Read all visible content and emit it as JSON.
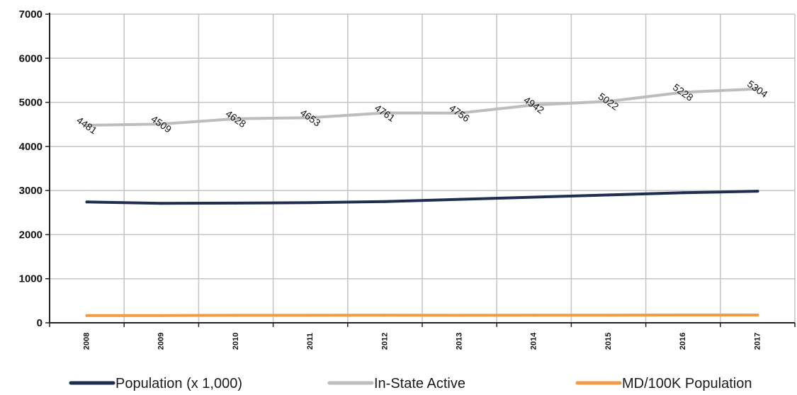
{
  "chart_data": {
    "type": "line",
    "categories": [
      "2008",
      "2009",
      "2010",
      "2011",
      "2012",
      "2013",
      "2014",
      "2015",
      "2016",
      "2017"
    ],
    "ylim": [
      0,
      7000
    ],
    "yticks": [
      "0",
      "1000",
      "2000",
      "3000",
      "4000",
      "5000",
      "6000",
      "7000"
    ],
    "grid": true,
    "legend_position": "bottom",
    "series": [
      {
        "name": "Population (x 1,000)",
        "color": "#1f2d4e",
        "values": [
          2740,
          2710,
          2715,
          2725,
          2750,
          2800,
          2850,
          2900,
          2950,
          2985
        ],
        "show_labels": false
      },
      {
        "name": "In-State Active",
        "color": "#bdbdbd",
        "values": [
          4481,
          4509,
          4628,
          4653,
          4761,
          4756,
          4942,
          5022,
          5228,
          5304
        ],
        "labels": [
          "4481",
          "4509",
          "4628",
          "4653",
          "4761",
          "4756",
          "4942",
          "5022",
          "5228",
          "5304"
        ],
        "show_labels": true
      },
      {
        "name": "MD/100K Population",
        "color": "#f29b45",
        "values": [
          163,
          166,
          170,
          170,
          173,
          170,
          173,
          173,
          177,
          177
        ],
        "show_labels": false
      }
    ]
  }
}
